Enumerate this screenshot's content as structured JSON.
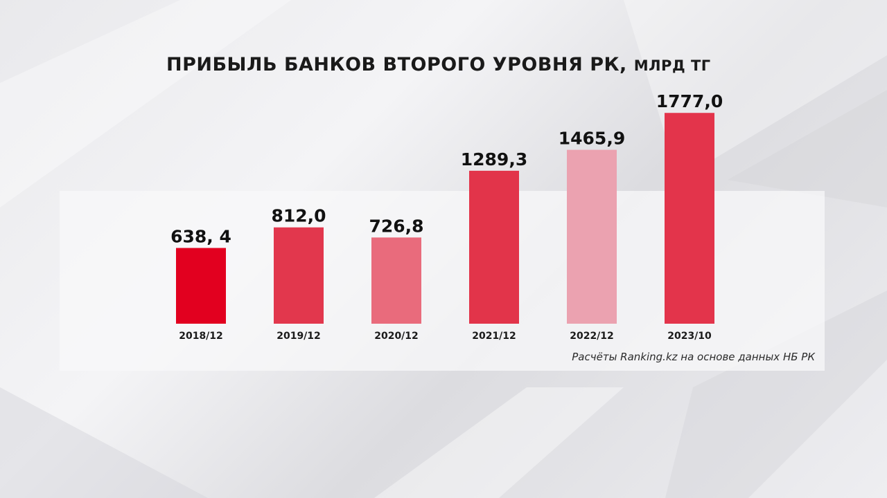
{
  "chart_data": {
    "type": "bar",
    "title": "ПРИБЫЛЬ БАНКОВ ВТОРОГО УРОВНЯ  РК,",
    "unit": "МЛРД ТГ",
    "categories": [
      "2018/12",
      "2019/12",
      "2020/12",
      "2021/12",
      "2022/12",
      "2023/10"
    ],
    "values": [
      638.4,
      812.0,
      726.8,
      1289.3,
      1465.9,
      1777.0
    ],
    "value_labels": [
      "638, 4",
      "812,0",
      "726,8",
      "1289,3",
      "1465,9",
      "1777,0"
    ],
    "bar_colors": [
      "#e2001f",
      "#e2374d",
      "#e96b7c",
      "#e2344a",
      "#eba2b0",
      "#e3344b"
    ],
    "ylim": [
      0,
      2000
    ],
    "grid": false,
    "legend": "none"
  },
  "source": "Расчёты Ranking.kz на основе данных НБ РК"
}
